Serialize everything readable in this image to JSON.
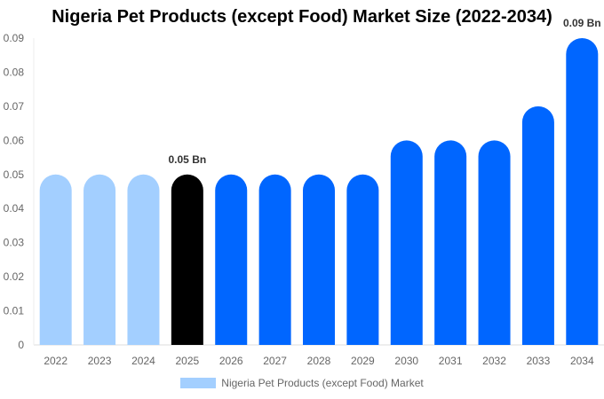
{
  "chart_data": {
    "type": "bar",
    "title": "Nigeria Pet Products (except Food) Market Size (2022-2034)",
    "categories": [
      "2022",
      "2023",
      "2024",
      "2025",
      "2026",
      "2027",
      "2028",
      "2029",
      "2030",
      "2031",
      "2032",
      "2033",
      "2034"
    ],
    "series": [
      {
        "name": "Nigeria Pet Products (except Food) Market",
        "values": [
          0.05,
          0.05,
          0.05,
          0.05,
          0.05,
          0.05,
          0.05,
          0.05,
          0.06,
          0.06,
          0.06,
          0.07,
          0.09
        ]
      }
    ],
    "yticks": [
      "0",
      "0.01",
      "0.02",
      "0.03",
      "0.04",
      "0.05",
      "0.06",
      "0.07",
      "0.08",
      "0.09"
    ],
    "ylim": [
      0,
      0.09
    ],
    "data_labels": [
      {
        "category": "2025",
        "text": "0.05 Bn"
      },
      {
        "category": "2034",
        "text": "0.09 Bn"
      }
    ],
    "colors": {
      "historical": "#a3cfff",
      "current": "#000000",
      "forecast": "#0066ff"
    },
    "grid": false,
    "legend_position": "bottom"
  }
}
